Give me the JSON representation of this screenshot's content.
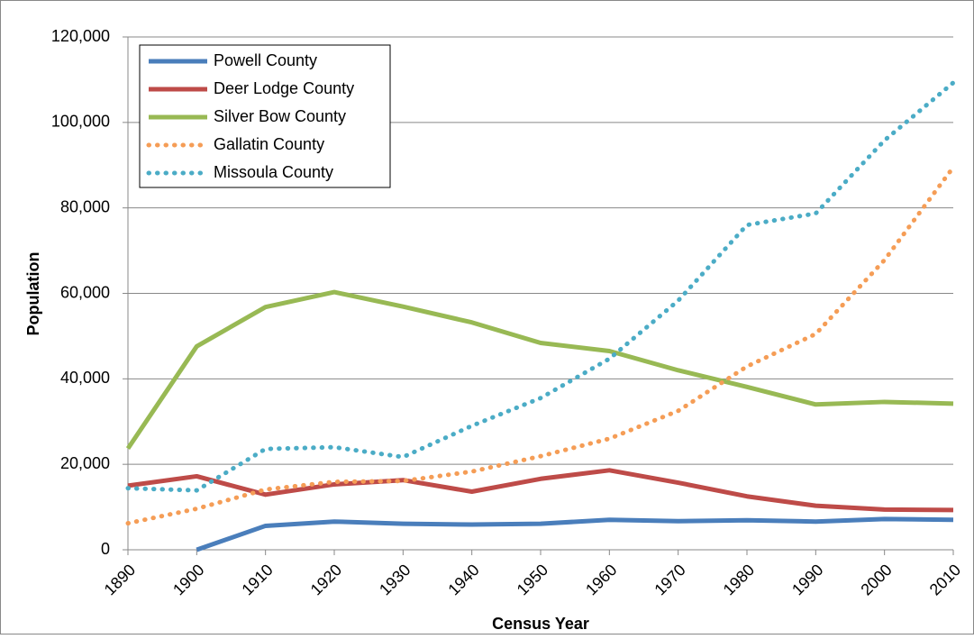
{
  "chart_data": {
    "type": "line",
    "x": [
      1890,
      1900,
      1910,
      1920,
      1930,
      1940,
      1950,
      1960,
      1970,
      1980,
      1990,
      2000,
      2010
    ],
    "xlim": [
      1890,
      2010
    ],
    "xticks": [
      1890,
      1900,
      1910,
      1920,
      1930,
      1940,
      1950,
      1960,
      1970,
      1980,
      1990,
      2000,
      2010
    ],
    "ylim": [
      0,
      120000
    ],
    "yticks": [
      0,
      {
        "value": 20000,
        "label": "20,000"
      },
      {
        "value": 40000,
        "label": "40,000"
      },
      {
        "value": 60000,
        "label": "60,000"
      },
      {
        "value": 80000,
        "label": "80,000"
      },
      {
        "value": 100000,
        "label": "100,000"
      },
      {
        "value": 120000,
        "label": "120,000"
      }
    ],
    "x_label": "Census Year",
    "y_label": "Population",
    "grid": true,
    "legend": "top-left",
    "series": [
      {
        "name": "Powell County",
        "color": "#4a7ebb",
        "style": "solid",
        "values": [
          null,
          0,
          5600,
          6600,
          6100,
          5900,
          6100,
          7000,
          6700,
          6900,
          6600,
          7200,
          7000
        ]
      },
      {
        "name": "Deer Lodge County",
        "color": "#be4b48",
        "style": "solid",
        "values": [
          15000,
          17200,
          12900,
          15300,
          16300,
          13600,
          16600,
          18600,
          15700,
          12500,
          10300,
          9400,
          9300
        ]
      },
      {
        "name": "Silver Bow County",
        "color": "#98b954",
        "style": "solid",
        "values": [
          23700,
          47600,
          56800,
          60300,
          56900,
          53200,
          48400,
          46500,
          42000,
          38100,
          34000,
          34600,
          34200
        ]
      },
      {
        "name": "Gallatin County",
        "color": "#f59d56",
        "style": "dotted",
        "values": [
          6200,
          9600,
          14100,
          15900,
          16100,
          18300,
          21900,
          26000,
          32500,
          42900,
          50500,
          67800,
          89500
        ]
      },
      {
        "name": "Missoula County",
        "color": "#4bacc6",
        "style": "dotted",
        "values": [
          14400,
          13900,
          23600,
          24000,
          21700,
          29000,
          35500,
          44700,
          58300,
          76000,
          78700,
          95800,
          109300
        ]
      }
    ]
  }
}
